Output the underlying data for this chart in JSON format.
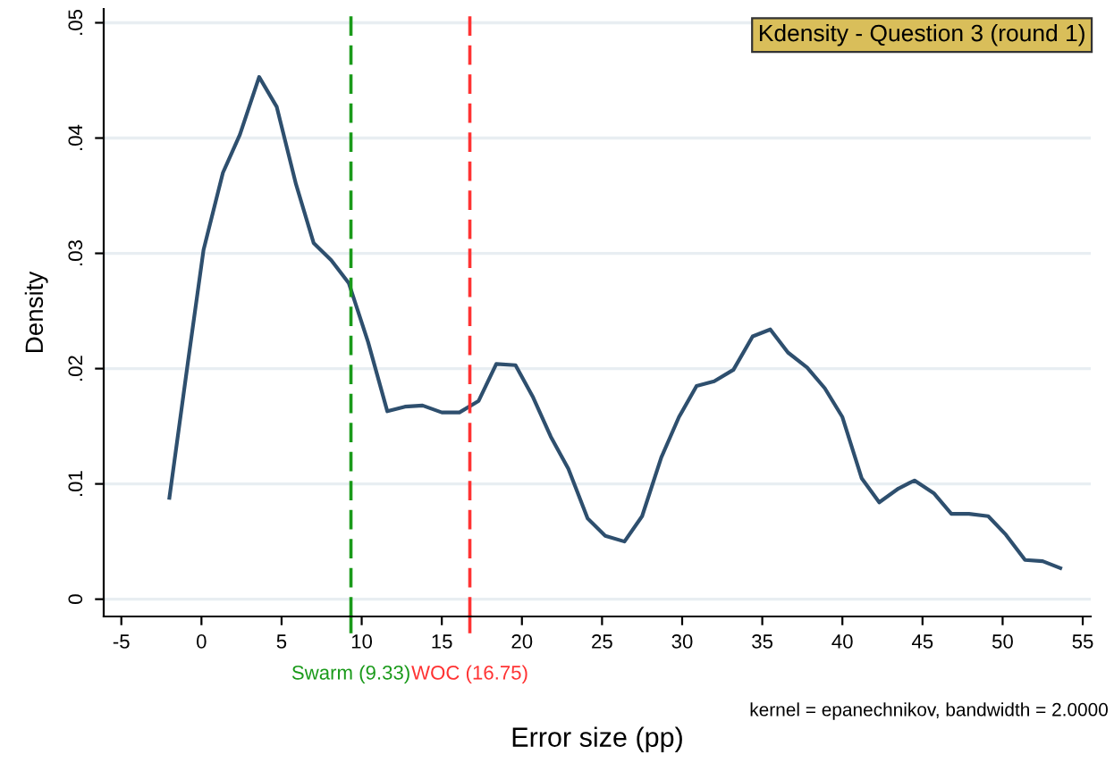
{
  "chart_data": {
    "type": "line",
    "title": "Kdensity - Question 3 (round 1)",
    "xlabel": "Error size (pp)",
    "ylabel": "Density",
    "annotations": [
      "kernel = epanechnikov, bandwidth = 2.0000"
    ],
    "x": [
      -2,
      -0.85,
      0.13,
      1.34,
      2.4,
      3.6,
      4.7,
      5.9,
      7.0,
      8.1,
      9.2,
      10.4,
      11.6,
      12.7,
      13.8,
      15.0,
      16.1,
      17.3,
      18.4,
      19.6,
      20.7,
      21.8,
      22.9,
      24.1,
      25.2,
      26.4,
      27.5,
      28.7,
      29.8,
      30.9,
      32.0,
      33.2,
      34.4,
      35.5,
      36.6,
      37.8,
      38.9,
      40.0,
      41.2,
      42.3,
      43.5,
      44.5,
      45.7,
      46.8,
      47.9,
      49.1,
      50.2,
      51.4,
      52.5,
      53.6
    ],
    "series": [
      {
        "color": "#2e4f6e",
        "values": [
          0.0088,
          0.0205,
          0.0303,
          0.037,
          0.0403,
          0.0453,
          0.0427,
          0.036,
          0.0309,
          0.0294,
          0.0274,
          0.0223,
          0.0163,
          0.0167,
          0.0168,
          0.0162,
          0.0162,
          0.0172,
          0.0204,
          0.0203,
          0.0175,
          0.0141,
          0.0113,
          0.007,
          0.0055,
          0.005,
          0.0072,
          0.0123,
          0.0158,
          0.0185,
          0.0189,
          0.0199,
          0.0228,
          0.0234,
          0.0214,
          0.0201,
          0.0183,
          0.0158,
          0.0105,
          0.0084,
          0.0096,
          0.0103,
          0.0092,
          0.0074,
          0.0074,
          0.0072,
          0.0056,
          0.0034,
          0.0033,
          0.0027
        ]
      }
    ],
    "xlim": [
      -6.1,
      55.5
    ],
    "ylim": [
      -0.0015,
      0.0512
    ],
    "xticks": [
      -5,
      0,
      5,
      10,
      15,
      20,
      25,
      30,
      35,
      40,
      45,
      50,
      55
    ],
    "yticks": [
      0,
      {
        "value": 0.01,
        "label": ".01"
      },
      {
        "value": 0.02,
        "label": ".02"
      },
      {
        "value": 0.03,
        "label": ".03"
      },
      {
        "value": 0.04,
        "label": ".04"
      },
      {
        "value": 0.05,
        "label": ".05"
      }
    ],
    "ref_lines": [
      {
        "axis": "x",
        "value": 9.33,
        "label": "Swarm (9.33)",
        "color": "#1a9a1a",
        "line_style": "dashed"
      },
      {
        "axis": "x",
        "value": 16.75,
        "label": "WOC (16.75)",
        "color": "#ff3333",
        "line_style": "dashed"
      }
    ],
    "grid": "y",
    "line_style": "solid",
    "marker": "none"
  }
}
